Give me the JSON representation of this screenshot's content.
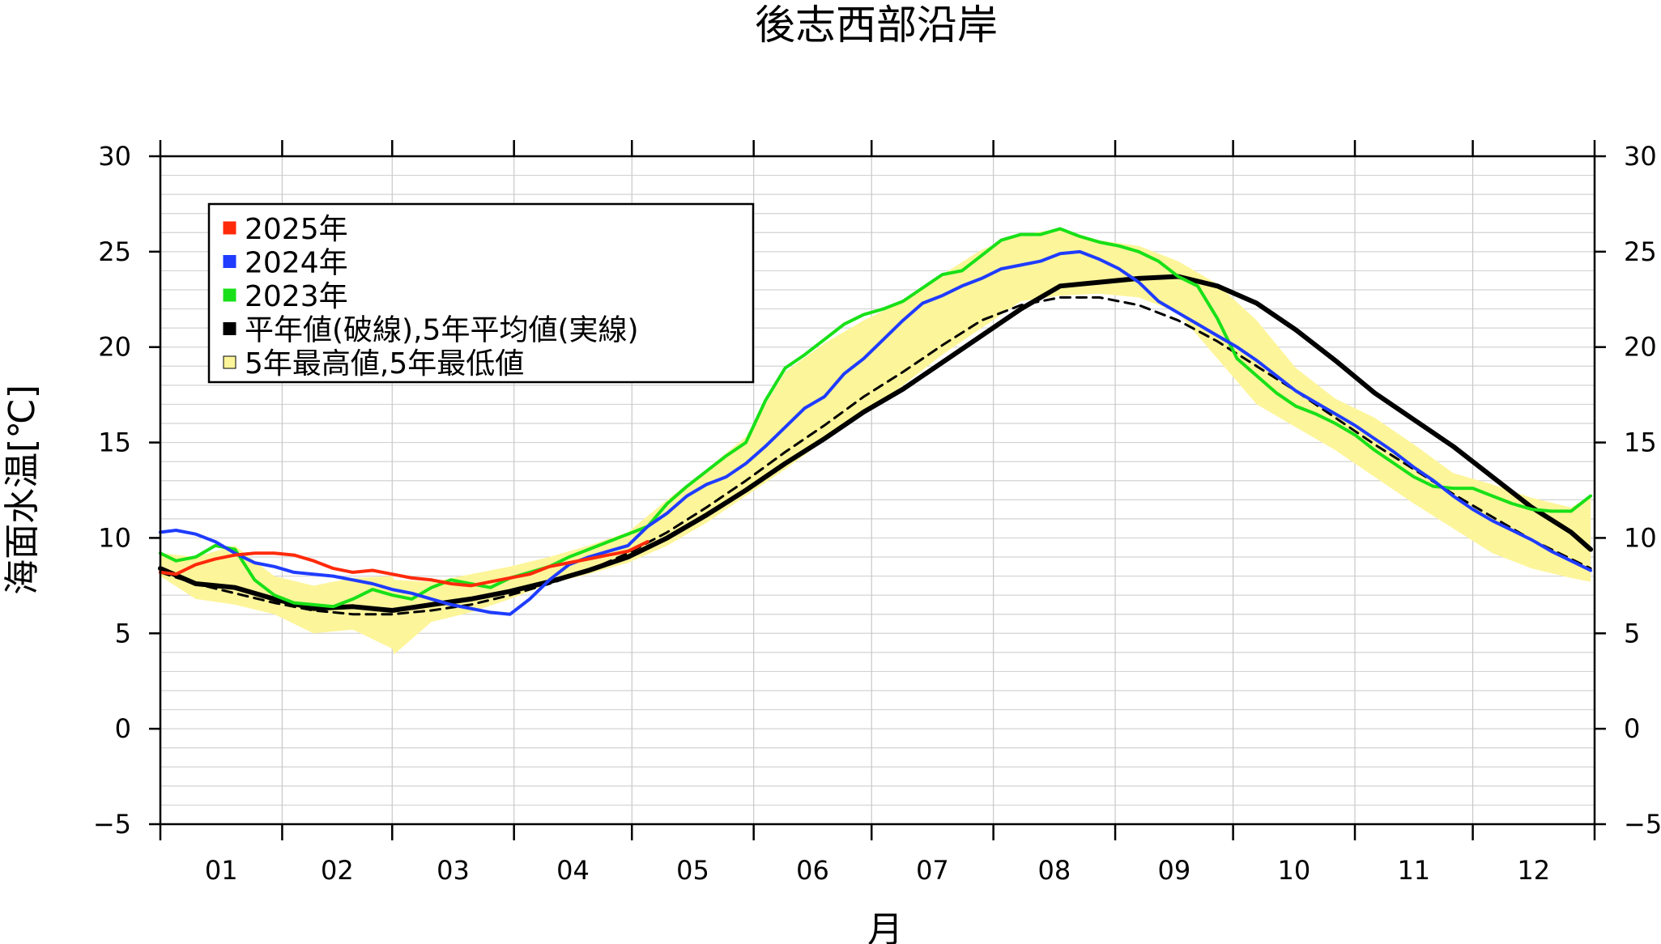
{
  "chart_data": {
    "type": "line",
    "title": "後志西部沿岸",
    "xlabel": "月",
    "ylabel": "海面水温[℃]",
    "ylim": [
      -5,
      30
    ],
    "yticks": [
      -5,
      0,
      5,
      10,
      15,
      20,
      25,
      30
    ],
    "ytick_labels": [
      "−5",
      "0",
      "5",
      "10",
      "15",
      "20",
      "25",
      "30"
    ],
    "month_labels": [
      "01",
      "02",
      "03",
      "04",
      "05",
      "06",
      "07",
      "08",
      "09",
      "10",
      "11",
      "12"
    ],
    "grid": true,
    "legend_position": "top-left",
    "legend": [
      {
        "label": "2025年",
        "color": "#ff2a0a"
      },
      {
        "label": "2024年",
        "color": "#1f3cff"
      },
      {
        "label": "2023年",
        "color": "#18e018"
      },
      {
        "label": "平年値(破線),5年平均値(実線)",
        "color": "#000000"
      },
      {
        "label": "5年最高値,5年最低値",
        "color": "#fdf59a"
      }
    ],
    "series": [
      {
        "name": "2025年",
        "color": "#ff2a0a",
        "x": [
          1,
          5,
          10,
          15,
          20,
          25,
          30,
          35,
          40,
          45,
          50,
          55,
          60,
          65,
          70,
          75,
          80,
          85,
          90,
          95,
          100,
          105,
          110,
          115,
          120,
          125
        ],
        "y": [
          8.2,
          8.1,
          8.6,
          8.9,
          9.1,
          9.2,
          9.2,
          9.1,
          8.8,
          8.4,
          8.2,
          8.3,
          8.1,
          7.9,
          7.8,
          7.6,
          7.5,
          7.7,
          7.9,
          8.1,
          8.5,
          8.7,
          8.9,
          9.1,
          9.3,
          9.8
        ]
      },
      {
        "name": "2024年",
        "color": "#1f3cff",
        "x": [
          1,
          5,
          10,
          15,
          20,
          25,
          30,
          35,
          40,
          45,
          50,
          55,
          60,
          65,
          70,
          75,
          80,
          85,
          90,
          95,
          100,
          105,
          110,
          115,
          120,
          125,
          130,
          135,
          140,
          145,
          150,
          155,
          160,
          165,
          170,
          175,
          180,
          185,
          190,
          195,
          200,
          205,
          210,
          215,
          220,
          225,
          230,
          235,
          240,
          245,
          250,
          255,
          260,
          265,
          270,
          275,
          280,
          285,
          290,
          295,
          300,
          305,
          310,
          315,
          320,
          325,
          330,
          335,
          340,
          345,
          350,
          355,
          360,
          365
        ],
        "y": [
          10.3,
          10.4,
          10.2,
          9.8,
          9.2,
          8.7,
          8.5,
          8.2,
          8.1,
          8.0,
          7.8,
          7.6,
          7.3,
          7.1,
          6.8,
          6.5,
          6.3,
          6.1,
          6.0,
          6.8,
          7.8,
          8.6,
          9.0,
          9.3,
          9.6,
          10.6,
          11.3,
          12.2,
          12.8,
          13.2,
          13.9,
          14.8,
          15.8,
          16.8,
          17.4,
          18.6,
          19.4,
          20.4,
          21.4,
          22.3,
          22.7,
          23.2,
          23.6,
          24.1,
          24.3,
          24.5,
          24.9,
          25.0,
          24.6,
          24.1,
          23.4,
          22.4,
          21.8,
          21.2,
          20.6,
          20.0,
          19.3,
          18.5,
          17.7,
          17.1,
          16.5,
          15.9,
          15.2,
          14.5,
          13.7,
          13.0,
          12.2,
          11.5,
          10.9,
          10.4,
          9.9,
          9.3,
          8.8,
          8.3
        ]
      },
      {
        "name": "2023年",
        "color": "#18e018",
        "x": [
          1,
          5,
          10,
          15,
          20,
          25,
          30,
          35,
          40,
          45,
          50,
          55,
          60,
          65,
          70,
          75,
          80,
          85,
          90,
          95,
          100,
          105,
          110,
          115,
          120,
          125,
          130,
          135,
          140,
          145,
          150,
          155,
          160,
          165,
          170,
          175,
          180,
          185,
          190,
          195,
          200,
          205,
          210,
          215,
          220,
          225,
          230,
          235,
          240,
          245,
          250,
          255,
          260,
          265,
          270,
          275,
          280,
          285,
          290,
          295,
          300,
          305,
          310,
          315,
          320,
          325,
          330,
          335,
          340,
          345,
          350,
          355,
          360,
          365
        ],
        "y": [
          9.2,
          8.8,
          9.0,
          9.6,
          9.4,
          7.8,
          7.0,
          6.6,
          6.5,
          6.4,
          6.8,
          7.3,
          7.0,
          6.8,
          7.4,
          7.8,
          7.6,
          7.4,
          7.9,
          8.2,
          8.5,
          9.0,
          9.4,
          9.8,
          10.2,
          10.6,
          11.8,
          12.7,
          13.5,
          14.3,
          15.0,
          17.2,
          18.9,
          19.6,
          20.4,
          21.2,
          21.7,
          22.0,
          22.4,
          23.1,
          23.8,
          24.0,
          24.8,
          25.6,
          25.9,
          25.9,
          26.2,
          25.8,
          25.5,
          25.3,
          25.0,
          24.5,
          23.7,
          23.2,
          21.5,
          19.4,
          18.5,
          17.6,
          16.9,
          16.5,
          16.0,
          15.4,
          14.6,
          13.9,
          13.2,
          12.7,
          12.6,
          12.6,
          12.2,
          11.8,
          11.5,
          11.4,
          11.4,
          12.2
        ]
      },
      {
        "name": "5年平均値",
        "color": "#000000",
        "x": [
          1,
          10,
          20,
          30,
          40,
          50,
          60,
          70,
          80,
          90,
          100,
          110,
          120,
          130,
          140,
          150,
          160,
          170,
          180,
          190,
          200,
          210,
          220,
          230,
          240,
          250,
          260,
          270,
          280,
          290,
          300,
          310,
          320,
          330,
          340,
          350,
          360,
          365
        ],
        "y": [
          8.4,
          7.6,
          7.4,
          6.8,
          6.3,
          6.4,
          6.2,
          6.5,
          6.8,
          7.2,
          7.7,
          8.3,
          9.0,
          10.0,
          11.2,
          12.5,
          13.9,
          15.2,
          16.6,
          17.8,
          19.2,
          20.6,
          22.0,
          23.2,
          23.4,
          23.6,
          23.7,
          23.2,
          22.3,
          20.9,
          19.3,
          17.6,
          16.2,
          14.8,
          13.2,
          11.6,
          10.3,
          9.4
        ]
      },
      {
        "name": "平年値",
        "color": "#000000",
        "x": [
          1,
          10,
          20,
          30,
          40,
          50,
          60,
          70,
          80,
          90,
          100,
          110,
          120,
          130,
          140,
          150,
          160,
          170,
          180,
          190,
          200,
          210,
          220,
          230,
          240,
          250,
          260,
          270,
          280,
          290,
          300,
          310,
          320,
          330,
          340,
          350,
          360,
          365
        ],
        "y": [
          8.2,
          7.6,
          7.1,
          6.6,
          6.2,
          6.0,
          6.0,
          6.2,
          6.5,
          7.0,
          7.6,
          8.3,
          9.2,
          10.3,
          11.6,
          13.0,
          14.5,
          15.9,
          17.4,
          18.7,
          20.1,
          21.4,
          22.2,
          22.6,
          22.6,
          22.2,
          21.4,
          20.3,
          19.0,
          17.7,
          16.3,
          14.9,
          13.6,
          12.3,
          11.1,
          9.9,
          8.9,
          8.4
        ]
      }
    ],
    "band_5yr_max_min": {
      "color": "#fdf59a",
      "x": [
        1,
        10,
        20,
        30,
        40,
        50,
        60,
        60.5,
        70,
        80,
        90,
        100,
        110,
        120,
        130,
        140,
        150,
        160,
        170,
        180,
        190,
        200,
        210,
        220,
        230,
        240,
        250,
        260,
        270,
        280,
        290,
        300,
        310,
        320,
        330,
        340,
        350,
        360,
        365
      ],
      "upper": [
        9.2,
        9.0,
        9.6,
        8.0,
        7.5,
        7.9,
        8.0,
        7.8,
        7.7,
        8.1,
        8.5,
        9.0,
        9.6,
        10.3,
        12.0,
        13.6,
        15.3,
        18.7,
        20.2,
        21.4,
        22.4,
        23.8,
        25.1,
        25.9,
        26.2,
        25.6,
        25.3,
        24.5,
        23.3,
        21.4,
        18.9,
        17.3,
        16.3,
        14.9,
        13.4,
        12.8,
        12.1,
        11.6,
        12.2
      ],
      "lower": [
        8.0,
        6.8,
        6.5,
        6.0,
        5.0,
        5.2,
        4.2,
        3.9,
        5.6,
        6.1,
        6.8,
        7.6,
        8.1,
        8.7,
        9.6,
        10.8,
        12.2,
        13.6,
        15.1,
        16.5,
        18.0,
        19.6,
        21.0,
        22.4,
        22.7,
        22.8,
        22.6,
        21.8,
        19.4,
        17.0,
        15.8,
        14.6,
        13.2,
        11.8,
        10.5,
        9.2,
        8.4,
        7.9,
        7.7
      ]
    }
  }
}
